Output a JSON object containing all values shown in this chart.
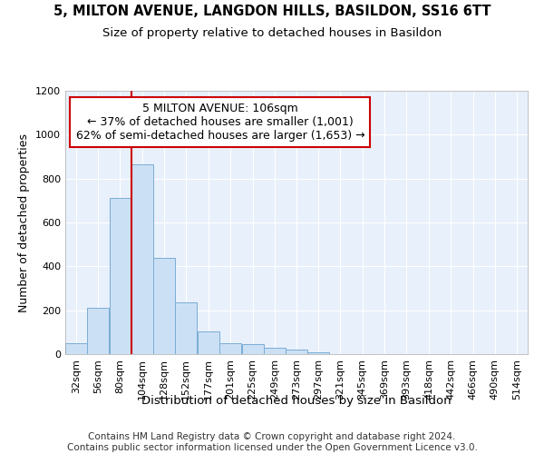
{
  "title_line1": "5, MILTON AVENUE, LANGDON HILLS, BASILDON, SS16 6TT",
  "title_line2": "Size of property relative to detached houses in Basildon",
  "xlabel": "Distribution of detached houses by size in Basildon",
  "ylabel": "Number of detached properties",
  "annotation_line1": "5 MILTON AVENUE: 106sqm",
  "annotation_line2": "← 37% of detached houses are smaller (1,001)",
  "annotation_line3": "62% of semi-detached houses are larger (1,653) →",
  "footer": "Contains HM Land Registry data © Crown copyright and database right 2024.\nContains public sector information licensed under the Open Government Licence v3.0.",
  "categories": [
    "32sqm",
    "56sqm",
    "80sqm",
    "104sqm",
    "128sqm",
    "152sqm",
    "177sqm",
    "201sqm",
    "225sqm",
    "249sqm",
    "273sqm",
    "297sqm",
    "321sqm",
    "345sqm",
    "369sqm",
    "393sqm",
    "418sqm",
    "442sqm",
    "466sqm",
    "490sqm",
    "514sqm"
  ],
  "bin_edges": [
    32,
    56,
    80,
    104,
    128,
    152,
    177,
    201,
    225,
    249,
    273,
    297,
    321,
    345,
    369,
    393,
    418,
    442,
    466,
    490,
    514
  ],
  "bin_width": 24,
  "bar_values": [
    50,
    210,
    710,
    865,
    440,
    235,
    105,
    50,
    45,
    30,
    20,
    10,
    0,
    0,
    0,
    0,
    0,
    0,
    0,
    0,
    0
  ],
  "bar_color": "#cce0f5",
  "bar_edge_color": "#7aadd4",
  "vline_color": "#cc0000",
  "vline_x": 104,
  "ylim": [
    0,
    1200
  ],
  "yticks": [
    0,
    200,
    400,
    600,
    800,
    1000,
    1200
  ],
  "background_color": "#e8f0fb",
  "annotation_box_color": "#ffffff",
  "annotation_box_edge": "#cc0000",
  "title_fontsize": 10.5,
  "subtitle_fontsize": 9.5,
  "axis_label_fontsize": 9,
  "tick_fontsize": 8,
  "annotation_fontsize": 9,
  "footer_fontsize": 7.5
}
